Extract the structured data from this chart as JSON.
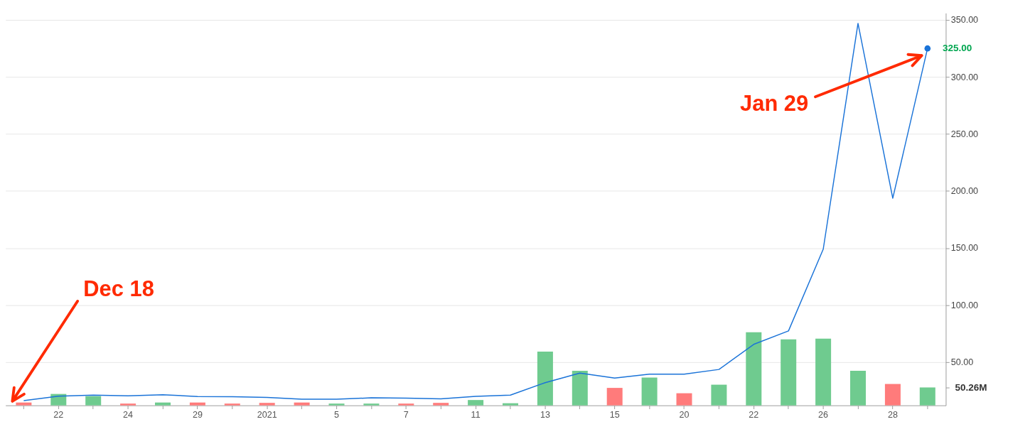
{
  "chart_data": {
    "type": "line",
    "categories": [
      null,
      "22",
      null,
      "24",
      null,
      "29",
      null,
      "2021",
      null,
      "5",
      null,
      "7",
      null,
      "11",
      null,
      "13",
      null,
      "15",
      null,
      "20",
      null,
      "22",
      null,
      "26",
      null,
      "28",
      null
    ],
    "series": [
      {
        "type": "bar",
        "axis": "y2",
        "values": [
          8,
          32,
          26,
          5,
          8,
          8,
          5,
          7,
          8,
          5,
          5,
          5,
          7,
          15,
          6,
          151,
          97,
          49,
          78,
          34,
          58,
          205,
          185,
          187,
          97,
          60,
          50.26
        ],
        "colors": [
          "#ff7b7b",
          "#6fcb8f",
          "#6fcb8f",
          "#ff7b7b",
          "#6fcb8f",
          "#ff7b7b",
          "#ff7b7b",
          "#ff7b7b",
          "#ff7b7b",
          "#6fcb8f",
          "#6fcb8f",
          "#ff7b7b",
          "#ff7b7b",
          "#6fcb8f",
          "#6fcb8f",
          "#6fcb8f",
          "#6fcb8f",
          "#ff7b7b",
          "#6fcb8f",
          "#ff7b7b",
          "#6fcb8f",
          "#6fcb8f",
          "#6fcb8f",
          "#6fcb8f",
          "#6fcb8f",
          "#ff7b7b",
          "#6fcb8f"
        ]
      },
      {
        "color": "#1a73d8",
        "values": [
          16.2,
          20.1,
          21,
          20.4,
          21.3,
          19.8,
          19.6,
          19,
          17.4,
          17.4,
          18.6,
          18.3,
          17.7,
          19.9,
          21,
          31.9,
          40.3,
          36,
          39.4,
          39.4,
          43.5,
          65.5,
          77.3,
          149,
          347,
          193.6,
          325
        ],
        "value_labels": [
          null,
          null,
          null,
          null,
          null,
          null,
          null,
          null,
          null,
          null,
          null,
          null,
          null,
          null,
          null,
          null,
          null,
          null,
          null,
          null,
          null,
          null,
          null,
          null,
          null,
          null,
          "325.00"
        ]
      }
    ],
    "ylim": [
      12,
      356
    ],
    "yticks": [
      {
        "value": 50,
        "label": "50.00"
      },
      {
        "value": 100,
        "label": "100.00"
      },
      {
        "value": 150,
        "label": "150.00"
      },
      {
        "value": 200,
        "label": "200.00"
      },
      {
        "value": 250,
        "label": "250.00"
      },
      {
        "value": 300,
        "label": "300.00"
      },
      {
        "value": 350,
        "label": "350.00"
      }
    ],
    "y2lim": [
      0,
      1100
    ],
    "y2ticks": [
      {
        "value": 50.26,
        "label": "50.26M"
      }
    ],
    "grid": "y",
    "annotations": [
      "Dec 18",
      "Jan 29"
    ]
  }
}
